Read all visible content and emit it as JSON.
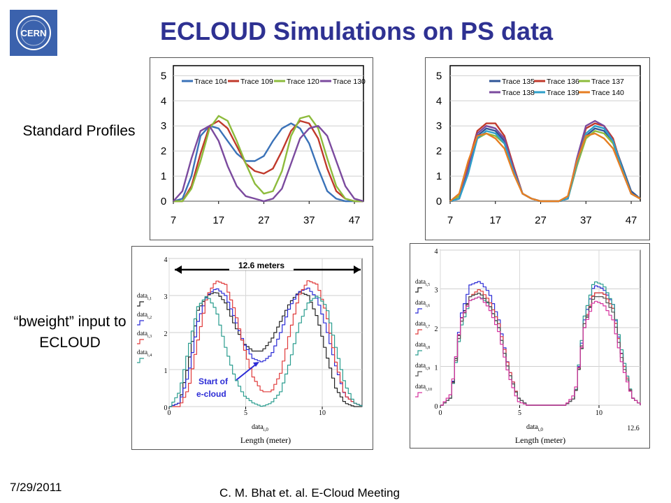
{
  "slide": {
    "title": "ECLOUD Simulations on PS data",
    "label_standard": "Standard Profiles",
    "label_bweight_1": "“bweight” input to",
    "label_bweight_2": "ECLOUD",
    "footer_date": "7/29/2011",
    "footer_credit": "C. M. Bhat et. al. E-Cloud Meeting",
    "logo_text": "CERN",
    "logo_color": "#3b62ad",
    "title_color": "#2e3192"
  },
  "chart_data": [
    {
      "type": "line",
      "x": [
        7,
        9,
        11,
        13,
        15,
        17,
        19,
        21,
        23,
        25,
        27,
        29,
        31,
        33,
        35,
        37,
        39,
        41,
        43,
        45,
        47,
        49
      ],
      "xticks": [
        7,
        17,
        27,
        37,
        47
      ],
      "yticks": [
        0,
        1,
        2,
        3,
        4,
        5
      ],
      "xlim": [
        7,
        49
      ],
      "ylim": [
        0,
        5.4
      ],
      "grid": true,
      "legend": "top",
      "series": [
        {
          "name": "Trace 104",
          "color": "#3a72b8",
          "values": [
            0,
            0.1,
            1.0,
            2.6,
            3.0,
            2.9,
            2.4,
            1.9,
            1.6,
            1.6,
            1.8,
            2.4,
            2.9,
            3.1,
            2.9,
            2.3,
            1.3,
            0.4,
            0.1,
            0,
            0,
            0
          ]
        },
        {
          "name": "Trace 109",
          "color": "#c0392b",
          "values": [
            0,
            0,
            0.6,
            1.9,
            3.0,
            3.2,
            2.9,
            2.2,
            1.5,
            1.2,
            1.1,
            1.3,
            2.0,
            2.8,
            3.2,
            3.1,
            2.5,
            1.3,
            0.4,
            0.1,
            0,
            0
          ]
        },
        {
          "name": "Trace 120",
          "color": "#8dbb3c",
          "values": [
            0,
            0,
            0.5,
            1.6,
            2.9,
            3.4,
            3.2,
            2.4,
            1.5,
            0.7,
            0.3,
            0.4,
            1.2,
            2.6,
            3.3,
            3.4,
            2.9,
            1.7,
            0.6,
            0.1,
            0,
            0
          ]
        },
        {
          "name": "Trace 130",
          "color": "#7b4a9e",
          "values": [
            0,
            0.4,
            1.7,
            2.8,
            3.0,
            2.4,
            1.4,
            0.6,
            0.2,
            0.1,
            0,
            0.1,
            0.5,
            1.5,
            2.5,
            2.9,
            3.0,
            2.6,
            1.6,
            0.6,
            0.1,
            0
          ]
        }
      ]
    },
    {
      "type": "line",
      "x": [
        7,
        9,
        11,
        13,
        15,
        17,
        19,
        21,
        23,
        25,
        27,
        29,
        31,
        33,
        35,
        37,
        39,
        41,
        43,
        45,
        47,
        49
      ],
      "xticks": [
        7,
        17,
        27,
        37,
        47
      ],
      "yticks": [
        0,
        1,
        2,
        3,
        4,
        5
      ],
      "xlim": [
        7,
        49
      ],
      "ylim": [
        0,
        5.4
      ],
      "grid": true,
      "legend": "top",
      "series": [
        {
          "name": "Trace 135",
          "color": "#2f5597",
          "values": [
            0,
            0.1,
            1.2,
            2.6,
            2.9,
            2.8,
            2.4,
            1.3,
            0.3,
            0.1,
            0,
            0,
            0,
            0.1,
            1.4,
            2.6,
            2.9,
            2.8,
            2.4,
            1.4,
            0.4,
            0.1
          ]
        },
        {
          "name": "Trace 136",
          "color": "#c0392b",
          "values": [
            0,
            0.2,
            1.5,
            2.8,
            3.1,
            3.1,
            2.6,
            1.4,
            0.3,
            0.1,
            0,
            0,
            0,
            0.1,
            1.6,
            2.9,
            3.1,
            3.0,
            2.5,
            1.3,
            0.3,
            0.1
          ]
        },
        {
          "name": "Trace 137",
          "color": "#8dbb3c",
          "values": [
            0,
            0.2,
            1.3,
            2.5,
            2.7,
            2.6,
            2.3,
            1.2,
            0.3,
            0.1,
            0,
            0,
            0,
            0.1,
            1.4,
            2.5,
            2.8,
            2.7,
            2.3,
            1.3,
            0.3,
            0.1
          ]
        },
        {
          "name": "Trace 138",
          "color": "#7b4a9e",
          "values": [
            0,
            0.1,
            1.3,
            2.7,
            3.0,
            2.9,
            2.5,
            1.3,
            0.3,
            0.1,
            0,
            0,
            0,
            0.1,
            1.7,
            3.0,
            3.2,
            3.0,
            2.4,
            1.2,
            0.3,
            0.1
          ]
        },
        {
          "name": "Trace 139",
          "color": "#2e9fc9",
          "values": [
            0,
            0.1,
            1.1,
            2.5,
            2.8,
            2.7,
            2.3,
            1.2,
            0.3,
            0.1,
            0,
            0,
            0,
            0.1,
            1.5,
            2.7,
            3.0,
            2.9,
            2.4,
            1.3,
            0.3,
            0.1
          ]
        },
        {
          "name": "Trace 140",
          "color": "#e67e22",
          "values": [
            0,
            0.3,
            1.6,
            2.6,
            2.7,
            2.5,
            2.1,
            1.1,
            0.3,
            0.1,
            0,
            0,
            0,
            0.2,
            1.6,
            2.6,
            2.7,
            2.5,
            2.1,
            1.2,
            0.3,
            0.1
          ]
        }
      ]
    },
    {
      "type": "line",
      "step": true,
      "xlabel": "Length (meter)",
      "xaxis_var": "data",
      "xaxis_sub": "i,0",
      "x": [
        0,
        0.6,
        1.2,
        1.8,
        2.4,
        3.0,
        3.6,
        4.2,
        4.8,
        5.4,
        6.0,
        6.6,
        7.2,
        7.8,
        8.4,
        9.0,
        9.6,
        10.2,
        10.8,
        11.4,
        12.0,
        12.6
      ],
      "xticks": [
        0,
        5,
        10
      ],
      "yticks": [
        0,
        1,
        2,
        3,
        4
      ],
      "xlim": [
        0,
        12.6
      ],
      "ylim": [
        0,
        4
      ],
      "grid": true,
      "legend": "left",
      "series": [
        {
          "name": "data i,1",
          "var": "data",
          "sub": "i,1",
          "color": "#222222",
          "values": [
            0,
            0.1,
            1.2,
            2.6,
            3.0,
            3.1,
            2.8,
            2.2,
            1.7,
            1.5,
            1.5,
            1.8,
            2.3,
            2.8,
            3.1,
            3.0,
            2.4,
            1.4,
            0.5,
            0.1,
            0,
            0
          ]
        },
        {
          "name": "data i,2",
          "var": "data",
          "sub": "i,2",
          "color": "#2b2bd6",
          "values": [
            0,
            0.1,
            0.9,
            2.3,
            3.0,
            3.2,
            3.0,
            2.4,
            1.7,
            1.3,
            1.2,
            1.4,
            2.0,
            2.7,
            3.1,
            3.2,
            2.9,
            2.1,
            1.1,
            0.3,
            0.1,
            0
          ]
        },
        {
          "name": "data i,3",
          "var": "data",
          "sub": "i,3",
          "color": "#e03b3b",
          "values": [
            0,
            0,
            0.5,
            1.8,
            3.0,
            3.4,
            3.3,
            2.6,
            1.6,
            0.8,
            0.4,
            0.4,
            0.9,
            2.0,
            3.0,
            3.4,
            3.3,
            2.5,
            1.2,
            0.3,
            0.1,
            0
          ]
        },
        {
          "name": "data i,4",
          "var": "data",
          "sub": "i,4",
          "color": "#2a9d8f",
          "values": [
            0,
            0.4,
            1.6,
            2.7,
            3.0,
            2.6,
            1.6,
            0.8,
            0.3,
            0.1,
            0,
            0.1,
            0.4,
            1.2,
            2.2,
            2.8,
            3.0,
            2.7,
            1.6,
            0.6,
            0.1,
            0
          ]
        }
      ],
      "annotations": {
        "span_label": "12.6 meters",
        "cloud_label_1": "Start of",
        "cloud_label_2": "e-cloud"
      }
    },
    {
      "type": "line",
      "step": true,
      "xlabel": "Length (meter)",
      "xaxis_var": "data",
      "xaxis_sub": "i,0",
      "x": [
        0,
        0.6,
        1.2,
        1.8,
        2.4,
        3.0,
        3.6,
        4.2,
        4.8,
        5.4,
        6.0,
        6.6,
        7.2,
        7.8,
        8.4,
        9.0,
        9.6,
        10.2,
        10.8,
        11.4,
        12.0,
        12.6
      ],
      "xticks": [
        0,
        5,
        10
      ],
      "xtick_extra": "12.6",
      "yticks": [
        0,
        1,
        2,
        3,
        4
      ],
      "xlim": [
        0,
        12.6
      ],
      "ylim": [
        0,
        4
      ],
      "grid": true,
      "legend": "left",
      "series": [
        {
          "name": "data i,5",
          "var": "data",
          "sub": "i,5",
          "color": "#222222",
          "values": [
            0,
            0.2,
            2.2,
            2.8,
            2.9,
            2.6,
            2.0,
            0.9,
            0.2,
            0,
            0,
            0,
            0,
            0,
            0.2,
            2.0,
            2.9,
            2.9,
            2.5,
            1.2,
            0.2,
            0
          ]
        },
        {
          "name": "data i,6",
          "var": "data",
          "sub": "i,6",
          "color": "#2b2bd6",
          "values": [
            0,
            0.2,
            2.3,
            3.1,
            3.2,
            2.9,
            2.2,
            1.0,
            0.2,
            0,
            0,
            0,
            0,
            0,
            0.2,
            2.2,
            3.1,
            3.0,
            2.6,
            1.2,
            0.2,
            0
          ]
        },
        {
          "name": "data i,7",
          "var": "data",
          "sub": "i,7",
          "color": "#e03b3b",
          "values": [
            0,
            0.2,
            2.1,
            2.8,
            3.0,
            2.7,
            2.1,
            1.0,
            0.2,
            0,
            0,
            0,
            0,
            0,
            0.2,
            2.1,
            2.9,
            2.9,
            2.5,
            1.2,
            0.2,
            0
          ]
        },
        {
          "name": "data i,8",
          "var": "data",
          "sub": "i,8",
          "color": "#2a9d8f",
          "values": [
            0,
            0.2,
            2.0,
            2.7,
            2.8,
            2.6,
            2.0,
            0.9,
            0.2,
            0,
            0,
            0,
            0,
            0,
            0.2,
            2.3,
            3.2,
            3.1,
            2.6,
            1.3,
            0.2,
            0
          ]
        },
        {
          "name": "data i,9",
          "var": "data",
          "sub": "i,9",
          "color": "#555555",
          "values": [
            0,
            0.2,
            2.1,
            2.8,
            2.9,
            2.6,
            2.0,
            0.9,
            0.2,
            0,
            0,
            0,
            0,
            0,
            0.2,
            2.1,
            2.8,
            2.8,
            2.4,
            1.1,
            0.2,
            0
          ]
        },
        {
          "name": "data i,10",
          "var": "data",
          "sub": "i,10",
          "color": "#d6339f",
          "values": [
            0,
            0.3,
            2.2,
            2.7,
            2.8,
            2.5,
            1.9,
            0.8,
            0.1,
            0,
            0,
            0,
            0,
            0,
            0.3,
            2.0,
            2.7,
            2.6,
            2.2,
            1.0,
            0.2,
            0
          ]
        }
      ]
    }
  ]
}
